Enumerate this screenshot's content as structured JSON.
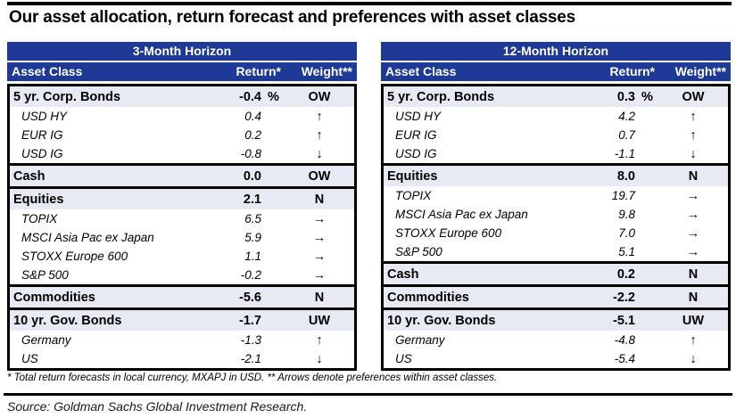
{
  "title": "Our asset allocation, return forecast and preferences with asset classes",
  "colors": {
    "header_blue": "#1e3a96",
    "category_row_bg": "#e7eaf3",
    "border_black": "#000000",
    "header_text": "#ffffff"
  },
  "columns": {
    "asset_class": "Asset Class",
    "return": "Return*",
    "weight": "Weight**"
  },
  "tables": [
    {
      "horizon": "3-Month Horizon",
      "sections": [
        {
          "rows": [
            {
              "type": "category",
              "label": "5 yr. Corp. Bonds",
              "return": "-0.4",
              "unit": "%",
              "weight": "OW"
            },
            {
              "type": "sub",
              "label": "USD HY",
              "return": "0.4",
              "arrow": "↑",
              "arrow_name": "up-arrow"
            },
            {
              "type": "sub",
              "label": "EUR IG",
              "return": "0.2",
              "arrow": "↑",
              "arrow_name": "up-arrow"
            },
            {
              "type": "sub",
              "label": "USD IG",
              "return": "-0.8",
              "arrow": "↓",
              "arrow_name": "down-arrow"
            }
          ]
        },
        {
          "rows": [
            {
              "type": "category",
              "label": "Cash",
              "return": "0.0",
              "weight": "OW"
            }
          ]
        },
        {
          "rows": [
            {
              "type": "category",
              "label": "Equities",
              "return": "2.1",
              "weight": "N"
            },
            {
              "type": "sub",
              "label": "TOPIX",
              "return": "6.5",
              "arrow": "→",
              "arrow_name": "right-arrow"
            },
            {
              "type": "sub",
              "label": "MSCI Asia Pac ex Japan",
              "return": "5.9",
              "arrow": "→",
              "arrow_name": "right-arrow"
            },
            {
              "type": "sub",
              "label": "STOXX Europe 600",
              "return": "1.1",
              "arrow": "→",
              "arrow_name": "right-arrow"
            },
            {
              "type": "sub",
              "label": "S&P 500",
              "return": "-0.2",
              "arrow": "→",
              "arrow_name": "right-arrow"
            }
          ]
        },
        {
          "rows": [
            {
              "type": "category",
              "label": "Commodities",
              "return": "-5.6",
              "weight": "N"
            }
          ]
        },
        {
          "rows": [
            {
              "type": "category",
              "label": "10 yr. Gov. Bonds",
              "return": "-1.7",
              "weight": "UW"
            },
            {
              "type": "sub",
              "label": "Germany",
              "return": "-1.3",
              "arrow": "↑",
              "arrow_name": "up-arrow"
            },
            {
              "type": "sub",
              "label": "US",
              "return": "-2.1",
              "arrow": "↓",
              "arrow_name": "down-arrow"
            }
          ]
        }
      ]
    },
    {
      "horizon": "12-Month Horizon",
      "sections": [
        {
          "rows": [
            {
              "type": "category",
              "label": "5 yr. Corp. Bonds",
              "return": "0.3",
              "unit": "%",
              "weight": "OW"
            },
            {
              "type": "sub",
              "label": "USD HY",
              "return": "4.2",
              "arrow": "↑",
              "arrow_name": "up-arrow"
            },
            {
              "type": "sub",
              "label": "EUR IG",
              "return": "0.7",
              "arrow": "↑",
              "arrow_name": "up-arrow"
            },
            {
              "type": "sub",
              "label": "USD IG",
              "return": "-1.1",
              "arrow": "↓",
              "arrow_name": "down-arrow"
            }
          ]
        },
        {
          "rows": [
            {
              "type": "category",
              "label": "Equities",
              "return": "8.0",
              "weight": "N"
            },
            {
              "type": "sub",
              "label": "TOPIX",
              "return": "19.7",
              "arrow": "→",
              "arrow_name": "right-arrow"
            },
            {
              "type": "sub",
              "label": "MSCI Asia Pac ex Japan",
              "return": "9.8",
              "arrow": "→",
              "arrow_name": "right-arrow"
            },
            {
              "type": "sub",
              "label": "STOXX Europe 600",
              "return": "7.0",
              "arrow": "→",
              "arrow_name": "right-arrow"
            },
            {
              "type": "sub",
              "label": "S&P 500",
              "return": "5.1",
              "arrow": "→",
              "arrow_name": "right-arrow"
            }
          ]
        },
        {
          "rows": [
            {
              "type": "category",
              "label": "Cash",
              "return": "0.2",
              "weight": "N"
            }
          ]
        },
        {
          "rows": [
            {
              "type": "category",
              "label": "Commodities",
              "return": "-2.2",
              "weight": "N"
            }
          ]
        },
        {
          "rows": [
            {
              "type": "category",
              "label": "10 yr. Gov. Bonds",
              "return": "-5.1",
              "weight": "UW"
            },
            {
              "type": "sub",
              "label": "Germany",
              "return": "-4.8",
              "arrow": "↑",
              "arrow_name": "up-arrow"
            },
            {
              "type": "sub",
              "label": "US",
              "return": "-5.4",
              "arrow": "↓",
              "arrow_name": "down-arrow"
            }
          ]
        }
      ]
    }
  ],
  "footnote": "* Total return forecasts in local currency, MXAPJ in USD. ** Arrows denote preferences within asset classes.",
  "source": "Source: Goldman Sachs Global Investment Research."
}
